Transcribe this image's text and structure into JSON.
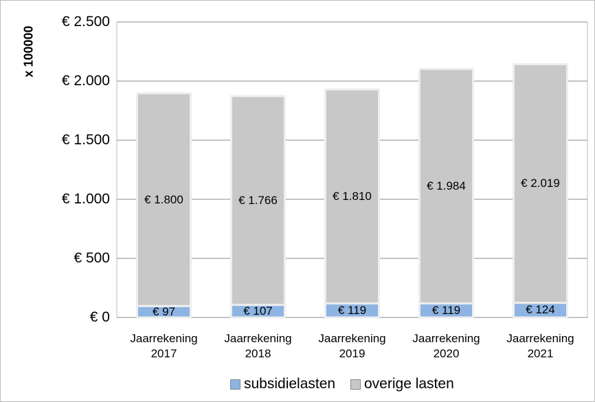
{
  "chart_data": {
    "type": "stacked_bar",
    "ylabel": "x 100000",
    "categories": [
      "Jaarrekening 2017",
      "Jaarrekening 2018",
      "Jaarrekening 2019",
      "Jaarrekening 2020",
      "Jaarrekening 2021"
    ],
    "series": [
      {
        "name": "subsidielasten",
        "color": "#8db4e2",
        "values": [
          97,
          107,
          119,
          119,
          124
        ],
        "value_labels": [
          "€ 97",
          "€ 107",
          "€ 119",
          "€ 119",
          "€ 124"
        ]
      },
      {
        "name": "overige lasten",
        "color": "#c8c8c8",
        "values": [
          1800,
          1766,
          1810,
          1984,
          2019
        ],
        "value_labels": [
          "€ 1.800",
          "€ 1.766",
          "€ 1.810",
          "€ 1.984",
          "€ 2.019"
        ]
      }
    ],
    "ylim": [
      0,
      2500
    ],
    "yticks": [
      {
        "value": 0,
        "label": "€ 0"
      },
      {
        "value": 500,
        "label": "€ 500"
      },
      {
        "value": 1000,
        "label": "€ 1.000"
      },
      {
        "value": 1500,
        "label": "€ 1.500"
      },
      {
        "value": 2000,
        "label": "€ 2.000"
      },
      {
        "value": 2500,
        "label": "€ 2.500"
      }
    ],
    "grid": true,
    "legend": "bottom"
  }
}
